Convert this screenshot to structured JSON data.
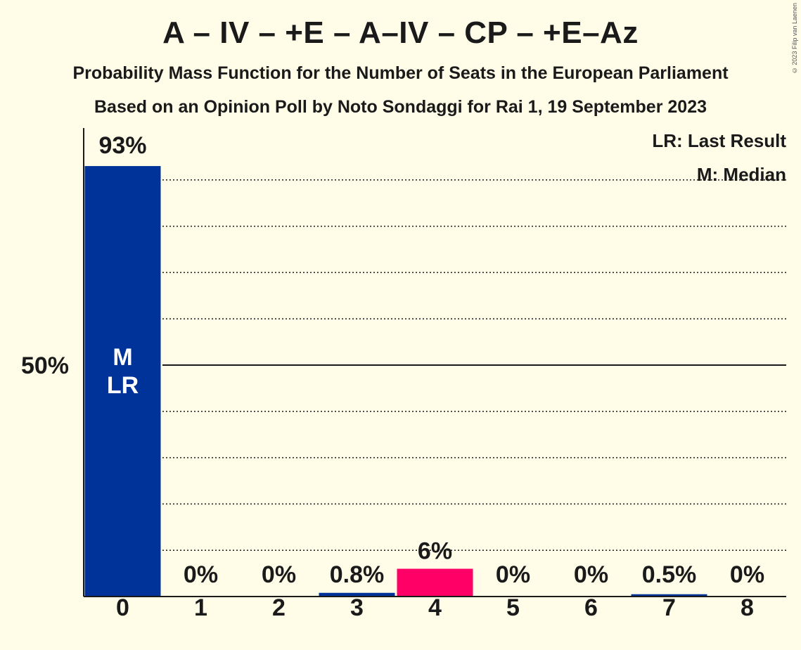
{
  "header": {
    "title": "A – IV – +E – A–IV – CP – +E–Az",
    "subtitle1": "Probability Mass Function for the Number of Seats in the European Parliament",
    "subtitle2": "Based on an Opinion Poll by Noto Sondaggi for Rai 1, 19 September 2023",
    "copyright": "© 2023 Filip van Laenen"
  },
  "chart_data": {
    "type": "bar",
    "title": "A – IV – +E – A–IV – CP – +E–Az",
    "categories": [
      "0",
      "1",
      "2",
      "3",
      "4",
      "5",
      "6",
      "7",
      "8"
    ],
    "values": [
      93,
      0,
      0,
      0.8,
      6,
      0,
      0,
      0.5,
      0
    ],
    "labels": [
      "93%",
      "0%",
      "0%",
      "0.8%",
      "6%",
      "0%",
      "0%",
      "0.5%",
      "0%"
    ],
    "bar_colors": [
      "#00339A",
      "#00339A",
      "#00339A",
      "#00339A",
      "#FF0066",
      "#00339A",
      "#00339A",
      "#00339A",
      "#00339A"
    ],
    "ylim": [
      0,
      100
    ],
    "yticks": [
      {
        "value": 50,
        "label": "50%"
      }
    ],
    "gridlines": [
      10,
      20,
      30,
      40,
      60,
      70,
      80,
      90
    ],
    "median_index": 0,
    "last_result_index": 0,
    "bar_annotation": [
      "M",
      "LR"
    ],
    "legend": [
      "LR: Last Result",
      "M: Median"
    ],
    "legend_position": "top-right",
    "grid": true
  }
}
